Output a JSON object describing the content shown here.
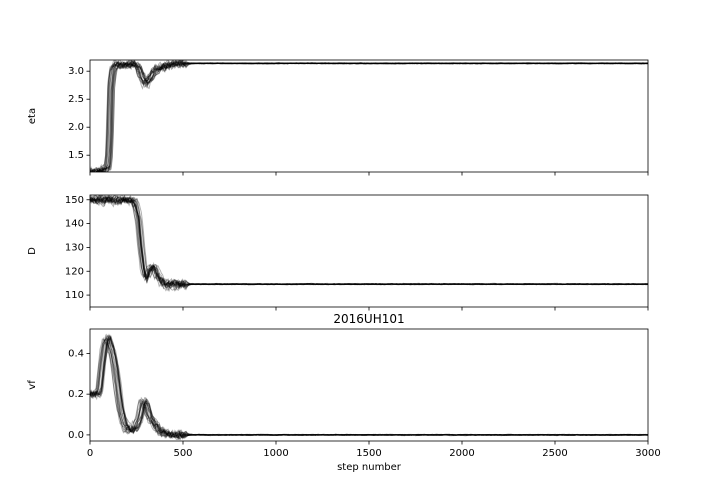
{
  "chart_data": [
    {
      "type": "line",
      "ylabel": "eta",
      "xlim": [
        0,
        3000
      ],
      "ylim": [
        1.2,
        3.2
      ],
      "yticks": [
        1.5,
        2.0,
        2.5,
        3.0
      ],
      "ytick_labels": [
        "1.5",
        "2.0",
        "2.5",
        "3.0"
      ],
      "line_color": "#000000",
      "series_count": 20,
      "approx_trace": {
        "x": [
          0,
          50,
          80,
          95,
          105,
          112,
          125,
          140,
          160,
          240,
          262,
          280,
          295,
          310,
          330,
          350,
          380,
          450,
          500,
          1000,
          2000,
          3000
        ],
        "y": [
          1.21,
          1.21,
          1.25,
          1.3,
          1.6,
          2.7,
          3.05,
          3.12,
          3.12,
          3.12,
          3.05,
          2.9,
          2.78,
          2.82,
          2.92,
          3.02,
          3.08,
          3.12,
          3.14,
          3.14,
          3.14,
          3.14
        ]
      }
    },
    {
      "type": "line",
      "ylabel": "D",
      "xlim": [
        0,
        3000
      ],
      "ylim": [
        105,
        152
      ],
      "yticks": [
        110,
        120,
        130,
        140,
        150
      ],
      "ytick_labels": [
        "110",
        "120",
        "130",
        "140",
        "150"
      ],
      "line_color": "#000000",
      "series_count": 20,
      "approx_trace": {
        "x": [
          0,
          150,
          210,
          240,
          260,
          275,
          290,
          305,
          320,
          340,
          360,
          385,
          410,
          450,
          500,
          1000,
          2000,
          3000
        ],
        "y": [
          150,
          150,
          150,
          149,
          143,
          130,
          120,
          117,
          121,
          122,
          119,
          116,
          114.5,
          114.5,
          114.6,
          114.6,
          114.6,
          114.6
        ]
      }
    },
    {
      "type": "line",
      "title": "2016UH101",
      "ylabel": "vf",
      "xlabel": "step number",
      "xlim": [
        0,
        3000
      ],
      "ylim": [
        -0.03,
        0.52
      ],
      "xticks": [
        0,
        500,
        1000,
        1500,
        2000,
        2500,
        3000
      ],
      "xtick_labels": [
        "0",
        "500",
        "1000",
        "1500",
        "2000",
        "2500",
        "3000"
      ],
      "yticks": [
        0.0,
        0.2,
        0.4
      ],
      "ytick_labels": [
        "0.0",
        "0.2",
        "0.4"
      ],
      "line_color": "#000000",
      "series_count": 20,
      "approx_trace": {
        "x": [
          0,
          35,
          50,
          65,
          80,
          95,
          110,
          125,
          140,
          165,
          190,
          215,
          240,
          265,
          285,
          300,
          320,
          345,
          370,
          400,
          450,
          500,
          1000,
          2000,
          3000
        ],
        "y": [
          0.2,
          0.2,
          0.22,
          0.35,
          0.45,
          0.48,
          0.44,
          0.38,
          0.3,
          0.12,
          0.04,
          0.02,
          0.03,
          0.08,
          0.17,
          0.15,
          0.09,
          0.05,
          0.025,
          0.01,
          0.002,
          0.0,
          0.0,
          0.0,
          0.0
        ]
      }
    }
  ]
}
